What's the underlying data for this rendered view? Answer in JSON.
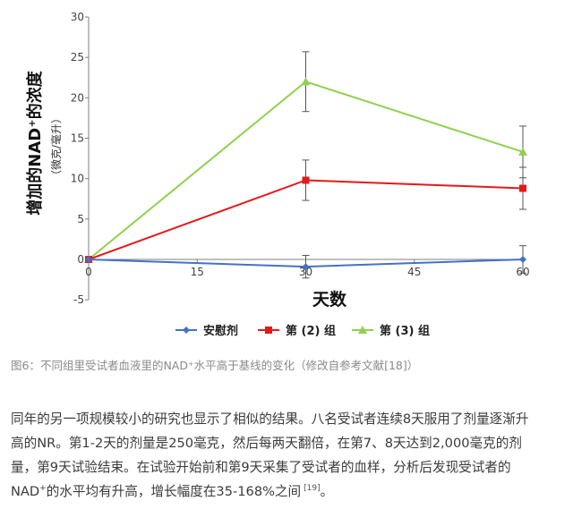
{
  "chart_data": {
    "type": "line",
    "x": [
      0,
      30,
      60
    ],
    "xticks": [
      "0",
      "15",
      "30",
      "45",
      "60"
    ],
    "xtick_values": [
      0,
      15,
      30,
      45,
      60
    ],
    "yticks": [
      "-5",
      "0",
      "5",
      "10",
      "15",
      "20",
      "25",
      "30"
    ],
    "ylim": [
      -5,
      30
    ],
    "xlim": [
      0,
      60
    ],
    "xlabel": "天数",
    "ylabel": "增加的NAD⁺的浓度",
    "ylabel_unit": "（微克/毫升）",
    "grid": false,
    "legend_position": "bottom",
    "series": [
      {
        "name": "安慰剂",
        "color": "#4472c4",
        "marker": "diamond",
        "values": [
          0,
          -0.9,
          0
        ],
        "errors": [
          0,
          1.4,
          1.7
        ]
      },
      {
        "name": "第 (2) 组",
        "color": "#e31a1c",
        "marker": "square",
        "values": [
          0,
          9.8,
          8.8
        ],
        "errors": [
          0,
          2.5,
          2.6
        ]
      },
      {
        "name": "第 (3) 组",
        "color": "#92d050",
        "marker": "triangle",
        "values": [
          0,
          22,
          13.3
        ],
        "errors": [
          0,
          3.7,
          3.2
        ]
      }
    ]
  },
  "caption": "图6：不同组里受试者血液里的NAD⁺水平高于基线的变化（修改自参考文献[18]）",
  "article": {
    "line1": "同年的另一项规模较小的研究也显示了相似的结果。八名受试者连续8天服用了剂量逐渐升",
    "line2": "高的NR。第1-2天的剂量是250毫克，然后每两天翻倍，在第7、8天达到2,000毫克的剂",
    "line3": "量，第9天试验结束。在试验开始前和第9天采集了受试者的血样，分析后发现受试者的",
    "line4_pre": "NAD",
    "line4_sup": "+",
    "line4_post": "的水平均有升高，增长幅度在35-168%之间",
    "line4_ref": "[19]",
    "line4_end": "。"
  }
}
